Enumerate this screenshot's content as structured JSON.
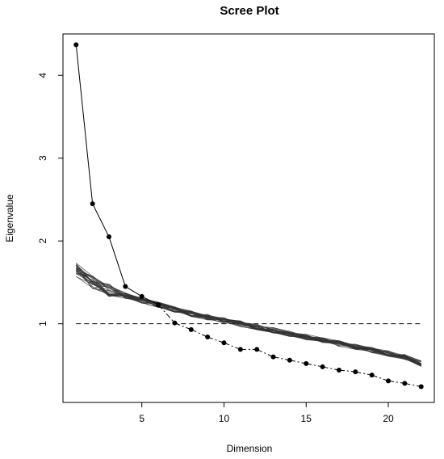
{
  "chart_data": {
    "type": "scatter",
    "title": "Scree Plot",
    "xlabel": "Dimension",
    "ylabel": "Eigenvalue",
    "xlim": [
      0.2,
      22.8
    ],
    "ylim": [
      0.05,
      4.5
    ],
    "xticks": [
      5,
      10,
      15,
      20
    ],
    "yticks": [
      1,
      2,
      3,
      4
    ],
    "reference_line": {
      "y": 1,
      "style": "dashed"
    },
    "series": [
      {
        "role": "observed-eigenvalues",
        "x": [
          1,
          2,
          3,
          4,
          5,
          6,
          7,
          8,
          9,
          10,
          11,
          12,
          13,
          14,
          15,
          16,
          17,
          18,
          19,
          20,
          21,
          22
        ],
        "values": [
          4.37,
          2.45,
          2.05,
          1.45,
          1.33,
          1.23,
          1.01,
          0.93,
          0.84,
          0.77,
          0.69,
          0.69,
          0.6,
          0.56,
          0.52,
          0.48,
          0.44,
          0.42,
          0.38,
          0.31,
          0.28,
          0.24
        ]
      },
      {
        "role": "simulated-eigenvalues",
        "x": [
          1,
          2,
          3,
          4,
          5,
          6,
          7,
          8,
          9,
          10,
          11,
          12,
          13,
          14,
          15,
          16,
          17,
          18,
          19,
          20,
          21,
          22
        ],
        "values": [
          1.65,
          1.5,
          1.41,
          1.34,
          1.28,
          1.23,
          1.17,
          1.12,
          1.08,
          1.04,
          1.0,
          0.96,
          0.92,
          0.88,
          0.84,
          0.8,
          0.76,
          0.72,
          0.68,
          0.64,
          0.6,
          0.52
        ],
        "replicates": 25
      }
    ]
  }
}
